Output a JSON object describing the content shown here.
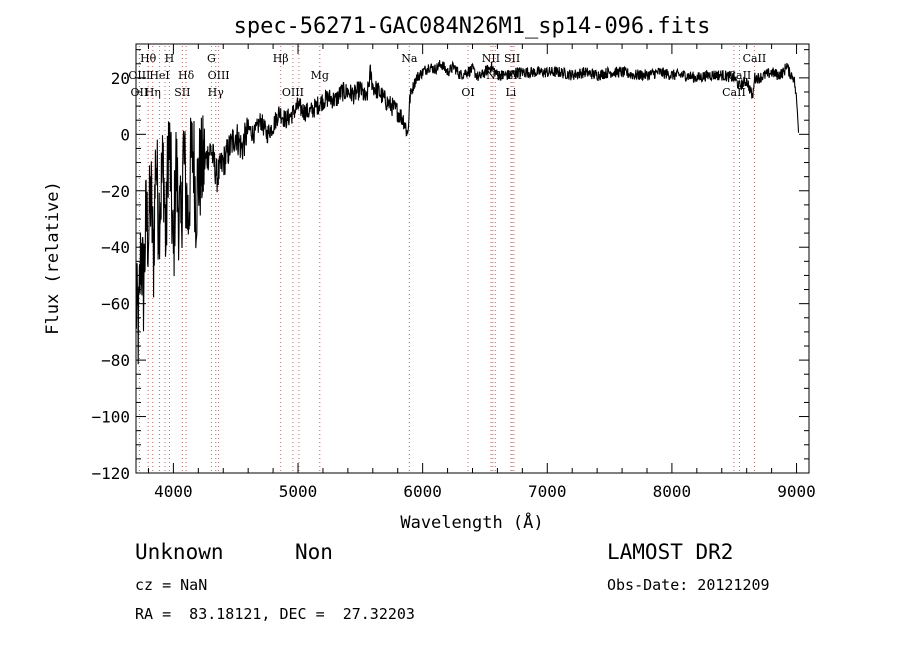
{
  "chart_data": {
    "type": "line",
    "title": "spec-56271-GAC084N26M1_sp14-096.fits",
    "xlabel": "Wavelength (Å)",
    "ylabel": "Flux (relative)",
    "xlim": [
      3700,
      9100
    ],
    "ylim": [
      -120,
      32
    ],
    "xticks": [
      4000,
      5000,
      6000,
      7000,
      8000,
      9000
    ],
    "yticks": [
      -120,
      -100,
      -80,
      -60,
      -40,
      -20,
      0,
      20
    ],
    "grid": false,
    "series": [
      {
        "x": [
          3700,
          3720,
          3740,
          3760,
          3780,
          3800,
          3820,
          3840,
          3860,
          3880,
          3900,
          3920,
          3940,
          3960,
          3980,
          4000,
          4020,
          4040,
          4060,
          4080,
          4100,
          4120,
          4140,
          4160,
          4180,
          4200,
          4250,
          4300,
          4350,
          4400,
          4450,
          4500,
          4550,
          4600,
          4650,
          4700,
          4750,
          4800,
          4850,
          4900,
          4950,
          5000,
          5050,
          5100,
          5150,
          5200,
          5250,
          5300,
          5350,
          5400,
          5450,
          5500,
          5550,
          5580,
          5600,
          5650,
          5700,
          5750,
          5800,
          5850,
          5880,
          5900,
          5950,
          6000,
          6050,
          6100,
          6150,
          6200,
          6250,
          6300,
          6350,
          6400,
          6450,
          6500,
          6550,
          6600,
          6650,
          6700,
          6750,
          6800,
          6850,
          6900,
          7000,
          7100,
          7200,
          7300,
          7400,
          7500,
          7600,
          7700,
          7800,
          7900,
          8000,
          8100,
          8200,
          8300,
          8400,
          8500,
          8540,
          8600,
          8650,
          8660,
          8700,
          8750,
          8800,
          8850,
          8900,
          8920,
          8940,
          8960,
          8980,
          9000,
          9020
        ],
        "y": [
          -60,
          -70,
          -40,
          -55,
          -30,
          -35,
          -20,
          -45,
          -5,
          -30,
          -20,
          -10,
          -40,
          0,
          -15,
          -45,
          -10,
          -25,
          -35,
          -5,
          -20,
          -30,
          -10,
          -5,
          -25,
          -15,
          -10,
          -5,
          -15,
          -10,
          -5,
          0,
          -5,
          2,
          0,
          5,
          0,
          3,
          8,
          5,
          7,
          10,
          8,
          8,
          10,
          12,
          13,
          12,
          15,
          15,
          14,
          16,
          12,
          22,
          17,
          15,
          12,
          10,
          8,
          5,
          0,
          14,
          20,
          22,
          24,
          23,
          25,
          22,
          24,
          21,
          22,
          23,
          20,
          22,
          24,
          21,
          21,
          21,
          22,
          22,
          22,
          22,
          22,
          22,
          21,
          22,
          21,
          22,
          22,
          21,
          21,
          22,
          21,
          21,
          20,
          21,
          21,
          20,
          17,
          19,
          13,
          20,
          20,
          21,
          22,
          21,
          22,
          25,
          22,
          21,
          20,
          12,
          0
        ]
      }
    ],
    "lines": [
      {
        "label": "Hθ",
        "wavelength": 3798,
        "pos": "top",
        "row": 0
      },
      {
        "label": "H",
        "wavelength": 3968,
        "pos": "top",
        "row": 0
      },
      {
        "label": "G",
        "wavelength": 4305,
        "pos": "top",
        "row": 0
      },
      {
        "label": "Hβ",
        "wavelength": 4861,
        "pos": "top",
        "row": 0
      },
      {
        "label": "Na",
        "wavelength": 5893,
        "pos": "top",
        "row": 0
      },
      {
        "label": "NII",
        "wavelength": 6548,
        "pos": "top",
        "row": 0
      },
      {
        "label": "SII",
        "wavelength": 6718,
        "pos": "top",
        "row": 0
      },
      {
        "label": "CaII",
        "wavelength": 8662,
        "pos": "top",
        "row": 0
      },
      {
        "label": "OIII",
        "wavelength": 3727,
        "pos": "top",
        "row": 1
      },
      {
        "label": "HeI",
        "wavelength": 3889,
        "pos": "top",
        "row": 1
      },
      {
        "label": "Hδ",
        "wavelength": 4102,
        "pos": "top",
        "row": 1
      },
      {
        "label": "OIII",
        "wavelength": 4363,
        "pos": "top",
        "row": 1
      },
      {
        "label": "Mg",
        "wavelength": 5175,
        "pos": "top",
        "row": 1
      },
      {
        "label": "NII",
        "wavelength": 6583,
        "pos": "top",
        "row": 1
      },
      {
        "label": "SII",
        "wavelength": 6733,
        "pos": "top",
        "row": 1
      },
      {
        "label": "CaII",
        "wavelength": 8542,
        "pos": "top",
        "row": 1
      },
      {
        "label": "OII",
        "wavelength": 3727,
        "pos": "top",
        "row": 2
      },
      {
        "label": "Hη",
        "wavelength": 3835,
        "pos": "top",
        "row": 2
      },
      {
        "label": "SII",
        "wavelength": 4072,
        "pos": "top",
        "row": 2
      },
      {
        "label": "Hγ",
        "wavelength": 4340,
        "pos": "top",
        "row": 2
      },
      {
        "label": "OIII",
        "wavelength": 4959,
        "pos": "top",
        "row": 2
      },
      {
        "label": "OI",
        "wavelength": 6364,
        "pos": "top",
        "row": 2
      },
      {
        "label": "Li",
        "wavelength": 6708,
        "pos": "top",
        "row": 2
      },
      {
        "label": "CaII",
        "wavelength": 8498,
        "pos": "top",
        "row": 2
      }
    ],
    "extra_lines": [
      3835,
      3889,
      3933,
      4102,
      4340,
      4861,
      5007,
      5175,
      6563,
      8498
    ]
  },
  "info": {
    "class_label": "Unknown",
    "subclass_label": "Non",
    "survey": "LAMOST DR2",
    "cz": "cz = NaN",
    "obs_date": "Obs-Date: 20121209",
    "coords": "RA =  83.18121, DEC =  27.32203"
  }
}
